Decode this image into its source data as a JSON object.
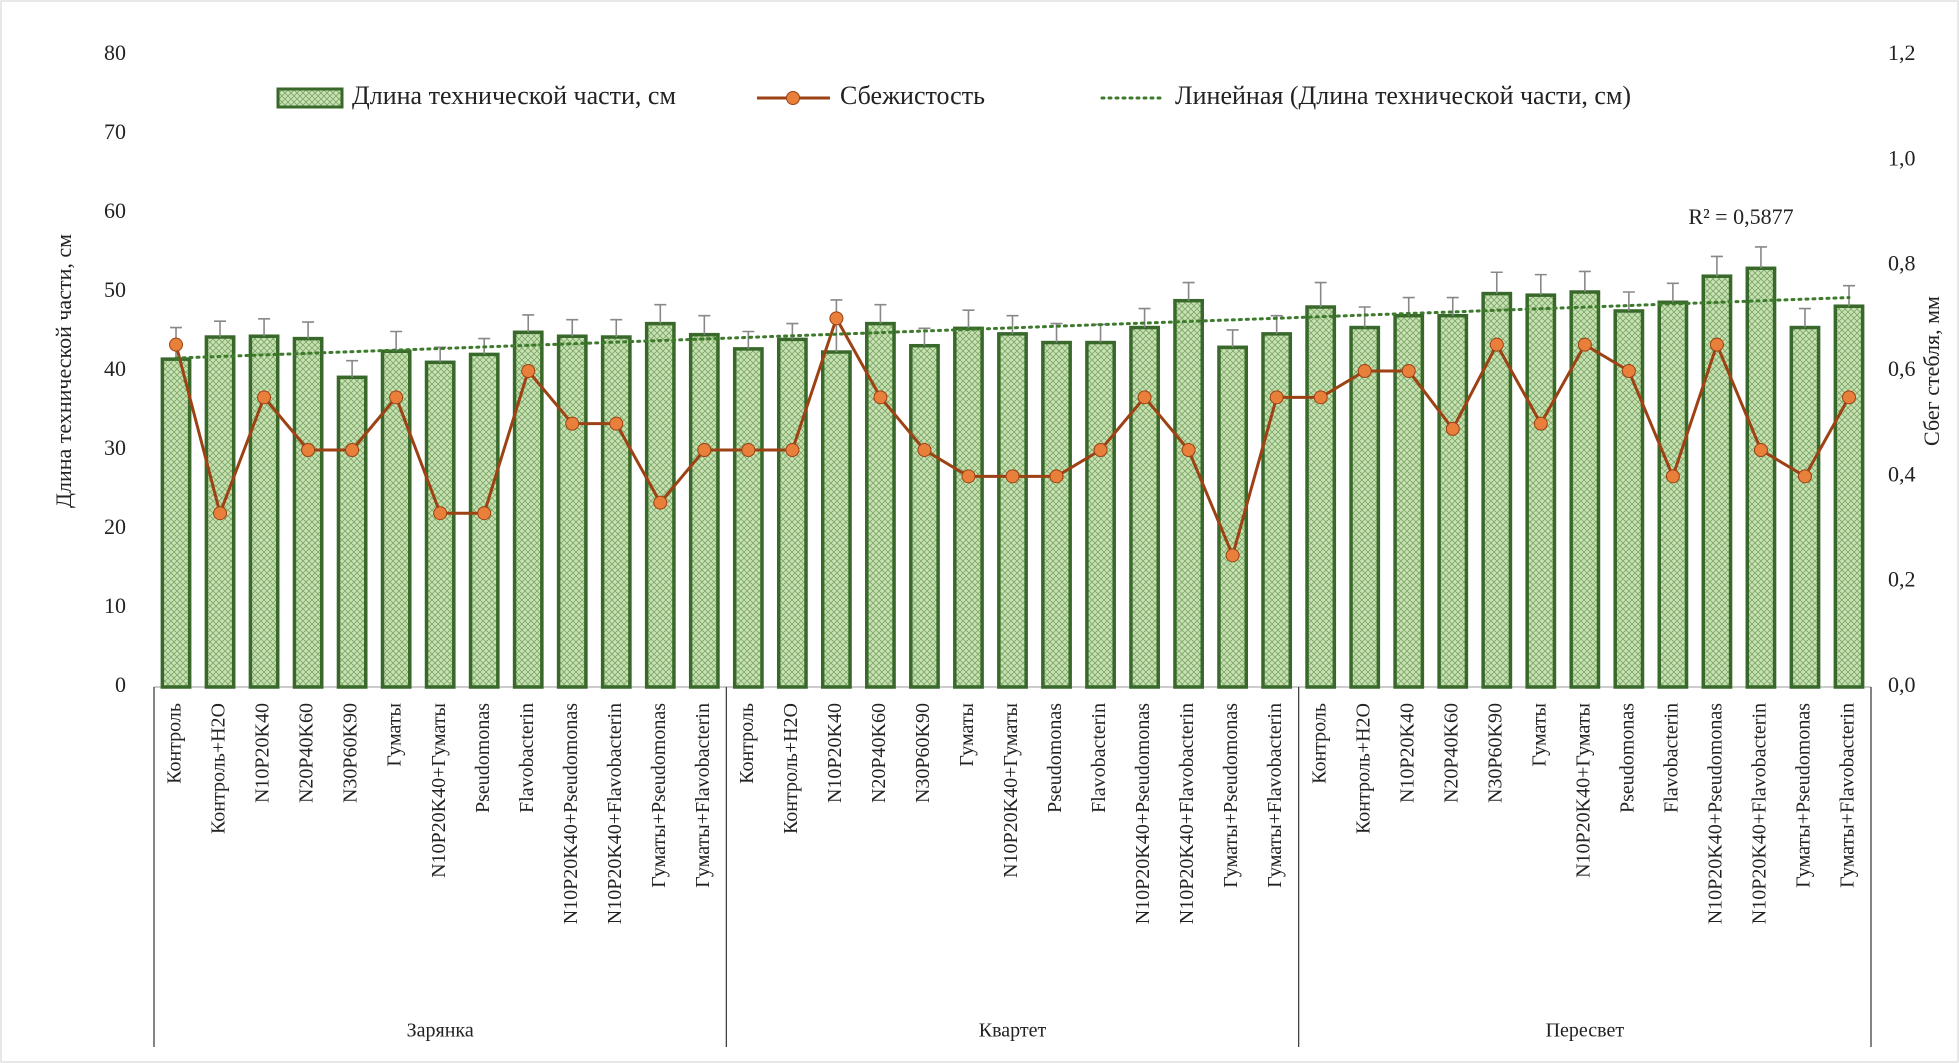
{
  "chart_data": {
    "type": "bar-line",
    "y_axis_label": "Длина технической части, см",
    "y2_axis_label": "Сбег стебля, мм",
    "groups": [
      "Зарянка",
      "Квартет",
      "Пересвет"
    ],
    "categories": [
      "Контроль",
      "Контроль+H2O",
      "N10P20K40",
      "N20P40K60",
      "N30P60K90",
      "Гуматы",
      "N10P20K40+Гуматы",
      "Pseudomonas",
      "Flavobacterin",
      "N10P20K40+Pseudomonas",
      "N10P20K40+Flavobacterin",
      "Гуматы+Pseudomonas",
      "Гуматы+Flavobacterin",
      "Контроль",
      "Контроль+H2O",
      "N10P20K40",
      "N20P40K60",
      "N30P60K90",
      "Гуматы",
      "N10P20K40+Гуматы",
      "Pseudomonas",
      "Flavobacterin",
      "N10P20K40+Pseudomonas",
      "N10P20K40+Flavobacterin",
      "Гуматы+Pseudomonas",
      "Гуматы+Flavobacterin",
      "Контроль",
      "Контроль+H2O",
      "N10P20K40",
      "N20P40K60",
      "N30P60K90",
      "Гуматы",
      "N10P20K40+Гуматы",
      "Pseudomonas",
      "Flavobacterin",
      "N10P20K40+Pseudomonas",
      "N10P20K40+Flavobacterin",
      "Гуматы+Pseudomonas",
      "Гуматы+Flavobacterin"
    ],
    "series": [
      {
        "name": "Длина технической части, см",
        "kind": "bar",
        "color": "#38692a",
        "fill": "#c9e2b3",
        "values": [
          41.5,
          44.3,
          44.4,
          44.1,
          39.2,
          42.5,
          41.1,
          42.1,
          44.9,
          44.4,
          44.3,
          46.0,
          44.6,
          42.8,
          44.0,
          42.4,
          46.0,
          43.2,
          45.4,
          44.7,
          43.6,
          43.6,
          45.5,
          48.9,
          43.0,
          44.7,
          48.1,
          45.5,
          47.0,
          47.0,
          49.8,
          49.6,
          50.0,
          47.6,
          48.7,
          52.0,
          53.0,
          45.5,
          48.2
        ],
        "errors": [
          4.0,
          2.0,
          2.2,
          2.1,
          2.1,
          2.5,
          1.9,
          2.0,
          2.2,
          2.1,
          2.2,
          2.4,
          2.4,
          2.2,
          2.0,
          6.6,
          2.4,
          2.2,
          2.3,
          2.3,
          2.4,
          2.3,
          2.4,
          2.3,
          2.2,
          2.3,
          3.1,
          2.6,
          2.3,
          2.3,
          2.7,
          2.6,
          2.6,
          2.4,
          2.4,
          2.5,
          2.7,
          2.4,
          2.6
        ]
      },
      {
        "name": "Сбежистость",
        "kind": "line",
        "axis": "y2",
        "color": "#9c4214",
        "marker_color": "#e8803c",
        "values": [
          0.65,
          0.33,
          0.55,
          0.45,
          0.45,
          0.55,
          0.33,
          0.33,
          0.6,
          0.5,
          0.5,
          0.35,
          0.45,
          0.45,
          0.45,
          0.7,
          0.55,
          0.45,
          0.4,
          0.4,
          0.4,
          0.45,
          0.55,
          0.45,
          0.25,
          0.55,
          0.55,
          0.6,
          0.6,
          0.49,
          0.65,
          0.5,
          0.65,
          0.6,
          0.4,
          0.65,
          0.45,
          0.4,
          0.55
        ]
      }
    ],
    "trendline": {
      "name": "Линейная (Длина технической части, см)",
      "color": "#3d7a2c",
      "r2_label": "R² = 0,5877"
    },
    "ylim": [
      0,
      80
    ],
    "yticks": [
      0,
      10,
      20,
      30,
      40,
      50,
      60,
      70,
      80
    ],
    "y2lim": [
      0,
      1.2
    ],
    "y2ticks": [
      {
        "value": 0,
        "label": "0,0"
      },
      {
        "value": 0.2,
        "label": "0,2"
      },
      {
        "value": 0.4,
        "label": "0,4"
      },
      {
        "value": 0.6,
        "label": "0,6"
      },
      {
        "value": 0.8,
        "label": "0,8"
      },
      {
        "value": 1.0,
        "label": "1,0"
      },
      {
        "value": 1.2,
        "label": "1,2"
      }
    ],
    "legend": "top",
    "grid": false
  }
}
